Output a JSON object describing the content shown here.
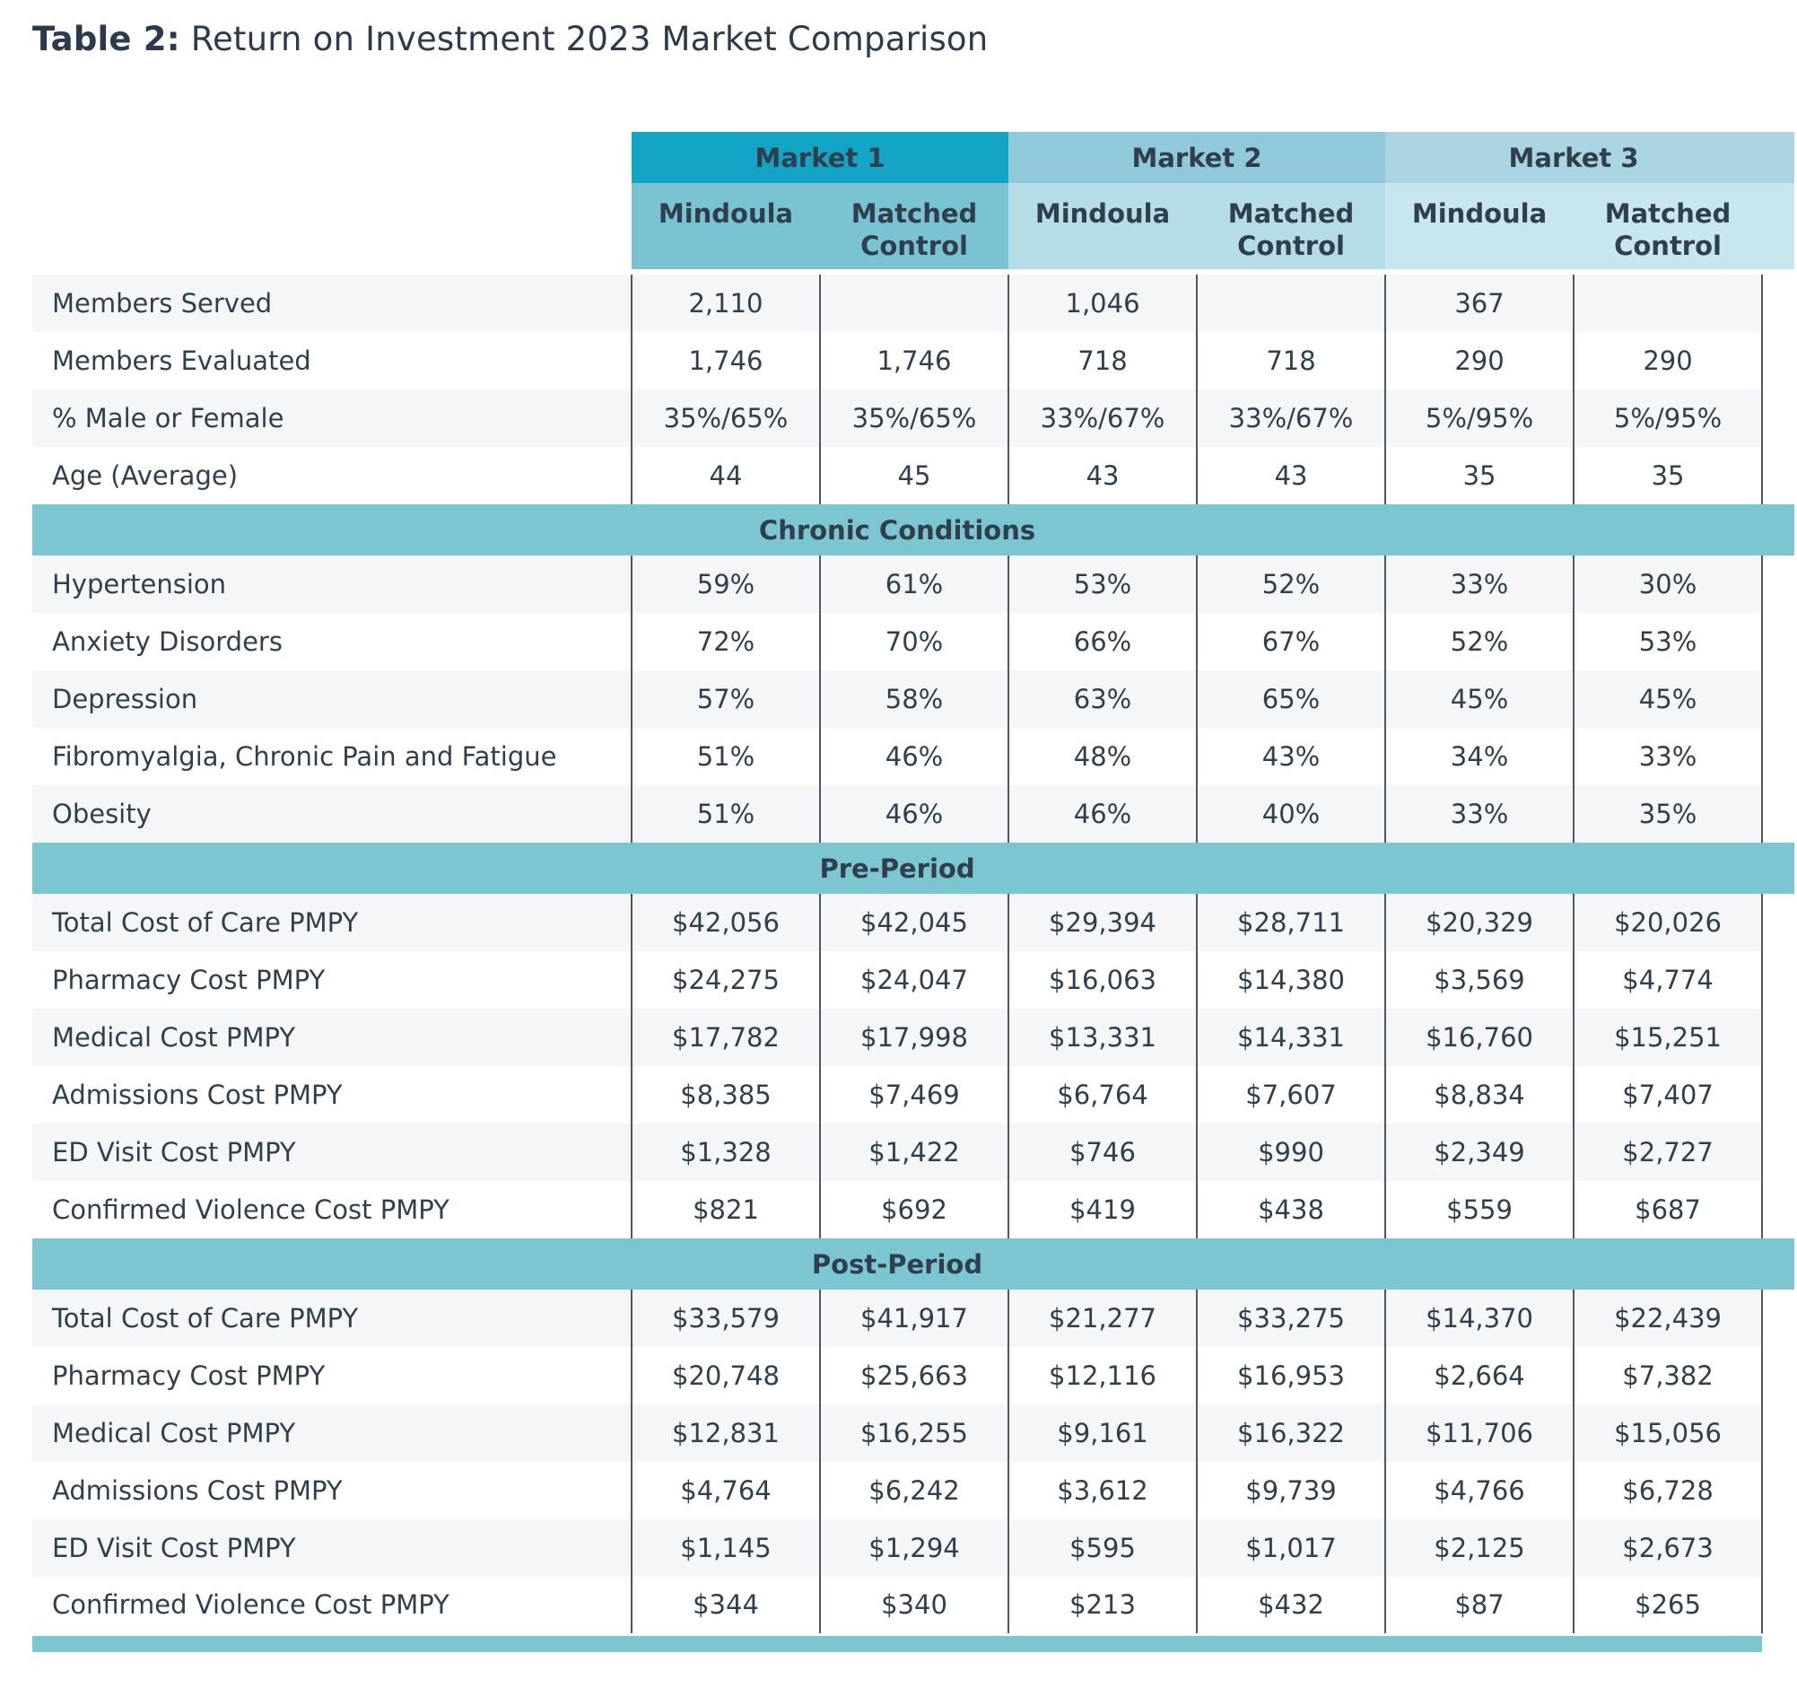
{
  "title": {
    "prefix": "Table 2:",
    "rest": " Return on Investment 2023 Market Comparison"
  },
  "header": {
    "markets": [
      "Market 1",
      "Market 2",
      "Market 3"
    ],
    "sub_columns": [
      "Mindoula",
      "Matched Control",
      "Mindoula",
      "Matched Control",
      "Mindoula",
      "Matched Control"
    ]
  },
  "sections": [
    {
      "band": null,
      "rows": [
        {
          "label": "Members Served",
          "values": [
            "2,110",
            "",
            "1,046",
            "",
            "367",
            ""
          ]
        },
        {
          "label": "Members Evaluated",
          "values": [
            "1,746",
            "1,746",
            "718",
            "718",
            "290",
            "290"
          ]
        },
        {
          "label": "% Male or Female",
          "values": [
            "35%/65%",
            "35%/65%",
            "33%/67%",
            "33%/67%",
            "5%/95%",
            "5%/95%"
          ]
        },
        {
          "label": "Age (Average)",
          "values": [
            "44",
            "45",
            "43",
            "43",
            "35",
            "35"
          ]
        }
      ]
    },
    {
      "band": "Chronic Conditions",
      "rows": [
        {
          "label": "Hypertension",
          "values": [
            "59%",
            "61%",
            "53%",
            "52%",
            "33%",
            "30%"
          ]
        },
        {
          "label": "Anxiety Disorders",
          "values": [
            "72%",
            "70%",
            "66%",
            "67%",
            "52%",
            "53%"
          ]
        },
        {
          "label": "Depression",
          "values": [
            "57%",
            "58%",
            "63%",
            "65%",
            "45%",
            "45%"
          ]
        },
        {
          "label": "Fibromyalgia, Chronic Pain and Fatigue",
          "values": [
            "51%",
            "46%",
            "48%",
            "43%",
            "34%",
            "33%"
          ]
        },
        {
          "label": "Obesity",
          "values": [
            "51%",
            "46%",
            "46%",
            "40%",
            "33%",
            "35%"
          ]
        }
      ]
    },
    {
      "band": "Pre-Period",
      "rows": [
        {
          "label": "Total Cost of Care PMPY",
          "values": [
            "$42,056",
            "$42,045",
            "$29,394",
            "$28,711",
            "$20,329",
            "$20,026"
          ]
        },
        {
          "label": "Pharmacy Cost PMPY",
          "values": [
            "$24,275",
            "$24,047",
            "$16,063",
            "$14,380",
            "$3,569",
            "$4,774"
          ]
        },
        {
          "label": "Medical Cost PMPY",
          "values": [
            "$17,782",
            "$17,998",
            "$13,331",
            "$14,331",
            "$16,760",
            "$15,251"
          ]
        },
        {
          "label": "Admissions Cost PMPY",
          "values": [
            "$8,385",
            "$7,469",
            "$6,764",
            "$7,607",
            "$8,834",
            "$7,407"
          ]
        },
        {
          "label": "ED Visit Cost PMPY",
          "values": [
            "$1,328",
            "$1,422",
            "$746",
            "$990",
            "$2,349",
            "$2,727"
          ]
        },
        {
          "label": "Confirmed Violence Cost PMPY",
          "values": [
            "$821",
            "$692",
            "$419",
            "$438",
            "$559",
            "$687"
          ]
        }
      ]
    },
    {
      "band": "Post-Period",
      "rows": [
        {
          "label": "Total Cost of Care PMPY",
          "values": [
            "$33,579",
            "$41,917",
            "$21,277",
            "$33,275",
            "$14,370",
            "$22,439"
          ]
        },
        {
          "label": "Pharmacy Cost PMPY",
          "values": [
            "$20,748",
            "$25,663",
            "$12,116",
            "$16,953",
            "$2,664",
            "$7,382"
          ]
        },
        {
          "label": "Medical Cost PMPY",
          "values": [
            "$12,831",
            "$16,255",
            "$9,161",
            "$16,322",
            "$11,706",
            "$15,056"
          ]
        },
        {
          "label": "Admissions Cost PMPY",
          "values": [
            "$4,764",
            "$6,242",
            "$3,612",
            "$9,739",
            "$4,766",
            "$6,728"
          ]
        },
        {
          "label": "ED Visit Cost PMPY",
          "values": [
            "$1,145",
            "$1,294",
            "$595",
            "$1,017",
            "$2,125",
            "$2,673"
          ]
        },
        {
          "label": "Confirmed Violence Cost PMPY",
          "values": [
            "$344",
            "$340",
            "$213",
            "$432",
            "$87",
            "$265"
          ]
        }
      ]
    }
  ],
  "colors": {
    "title_text": "#2b3a4d",
    "text": "#303f4e",
    "m1_head": "#14a5c6",
    "m1_sub": "#7ac3d3",
    "m2_head": "#8fc9da",
    "m2_sub": "#b4dde7",
    "m3_head": "#a9d5e2",
    "m3_sub": "#c8e6ed",
    "band": "#7cc6d2",
    "stripe": "#f5f6f8",
    "border": "#4e575f"
  }
}
